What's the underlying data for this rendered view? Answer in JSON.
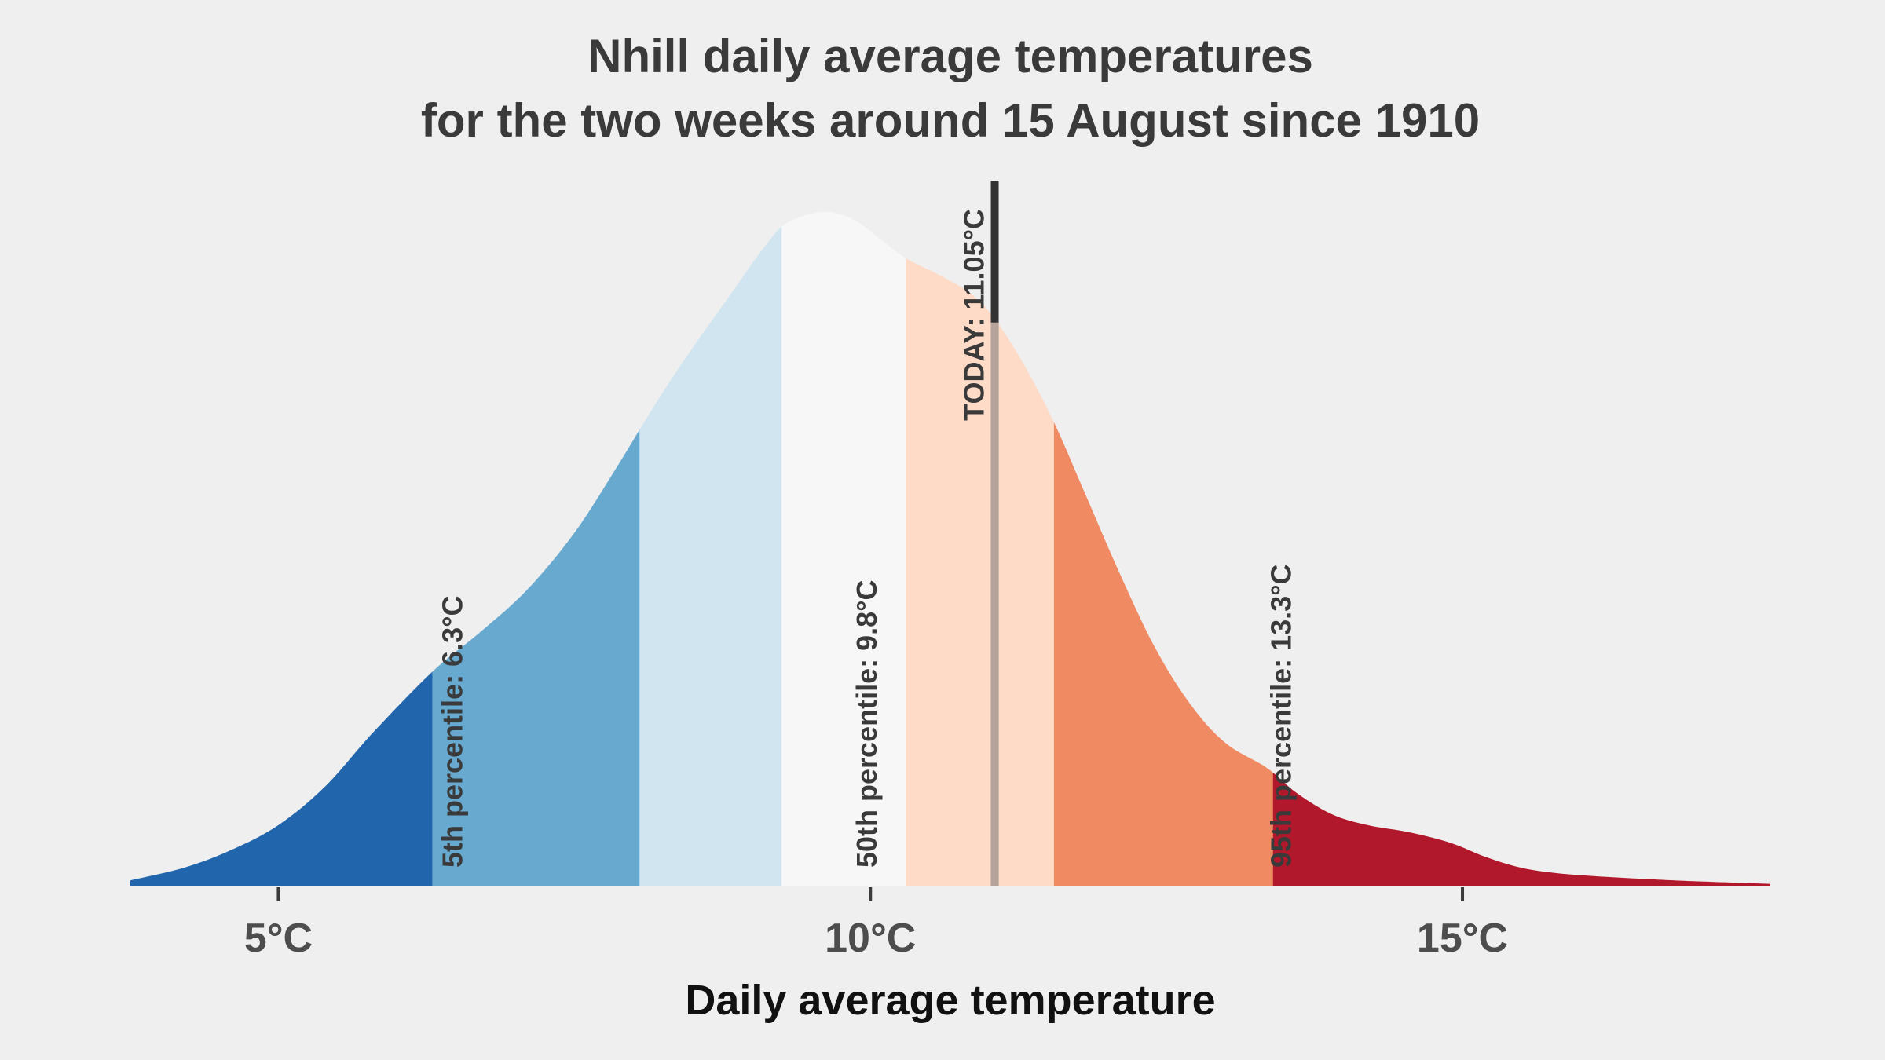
{
  "chart_data": {
    "type": "area",
    "title": [
      "Nhill daily average temperatures",
      "for the two weeks around 15 August since 1910"
    ],
    "xlabel": "Daily average temperature",
    "ylabel": "",
    "xlim": [
      3.75,
      17.6
    ],
    "x_ticks": [
      {
        "value": 5,
        "label": "5°C"
      },
      {
        "value": 10,
        "label": "10°C"
      },
      {
        "value": 15,
        "label": "15°C"
      }
    ],
    "density": {
      "x": [
        3.75,
        4.2,
        4.6,
        5.0,
        5.4,
        5.8,
        6.3,
        6.7,
        7.1,
        7.5,
        7.85,
        8.2,
        8.5,
        8.8,
        9.1,
        9.3,
        9.6,
        9.85,
        10.1,
        10.3,
        10.6,
        10.85,
        11.05,
        11.3,
        11.55,
        11.8,
        12.1,
        12.4,
        12.7,
        13.0,
        13.35,
        13.6,
        13.9,
        14.2,
        14.55,
        14.9,
        15.2,
        15.5,
        15.8,
        16.2,
        16.6,
        17.0,
        17.6
      ],
      "y": [
        0.015,
        0.05,
        0.1,
        0.17,
        0.28,
        0.43,
        0.6,
        0.71,
        0.83,
        0.99,
        1.17,
        1.36,
        1.51,
        1.65,
        1.79,
        1.86,
        1.89,
        1.87,
        1.81,
        1.76,
        1.71,
        1.66,
        1.59,
        1.46,
        1.3,
        1.11,
        0.88,
        0.67,
        0.51,
        0.4,
        0.33,
        0.26,
        0.2,
        0.17,
        0.15,
        0.12,
        0.08,
        0.05,
        0.035,
        0.025,
        0.018,
        0.012,
        0.005
      ]
    },
    "bands": [
      {
        "from": 3.75,
        "to": 6.3,
        "color": "#2166ac"
      },
      {
        "from": 6.3,
        "to": 8.05,
        "color": "#67a9cf"
      },
      {
        "from": 8.05,
        "to": 9.25,
        "color": "#d1e5f0"
      },
      {
        "from": 9.25,
        "to": 10.3,
        "color": "#f7f7f7"
      },
      {
        "from": 10.3,
        "to": 11.55,
        "color": "#fddbc7"
      },
      {
        "from": 11.55,
        "to": 13.4,
        "color": "#ef8a62"
      },
      {
        "from": 13.4,
        "to": 17.6,
        "color": "#b2182b"
      }
    ],
    "today": {
      "value": 11.05,
      "label": "TODAY:  11.05°C",
      "color": "#333333"
    },
    "annotations": [
      {
        "value": 6.3,
        "label": "5th percentile:  6.3°C",
        "y": 0.85
      },
      {
        "value": 9.8,
        "label": "50th percentile: 9.8°C",
        "y": 0.68
      },
      {
        "value": 13.3,
        "label": "95th percentile:  13.3°C",
        "y": 0.58
      }
    ]
  }
}
